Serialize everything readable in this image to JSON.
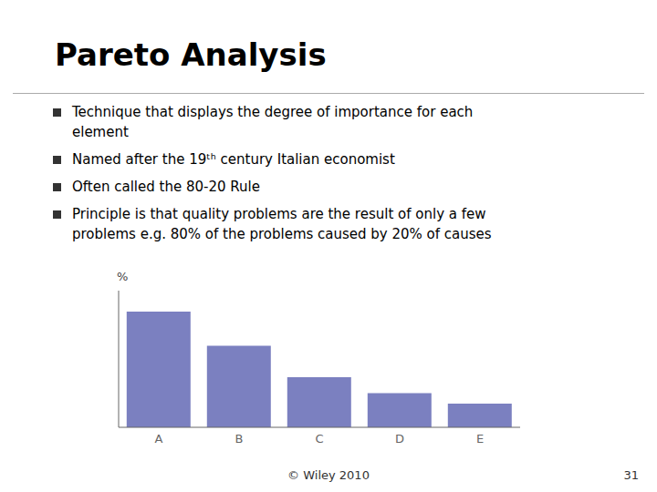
{
  "chart_data": {
    "type": "bar",
    "title": "Pareto Analysis",
    "ylabel": "%",
    "categories": [
      "A",
      "B",
      "C",
      "D",
      "E"
    ],
    "values": [
      88,
      62,
      38,
      26,
      18
    ],
    "color": "#7B80C0",
    "ylim": [
      0,
      103.84
    ],
    "grid": false,
    "legend": false,
    "tick_labels": "x",
    "annotations": [
      "Technique that displays the degree of importance for each\nelement",
      "Named after the 19ᵗʰ century Italian economist",
      "Often called the 80-20 Rule",
      "Principle is that quality problems are the result of only a few\nproblems e.g. 80% of the problems caused by 20% of causes",
      "© Wiley 2010",
      "31"
    ]
  }
}
